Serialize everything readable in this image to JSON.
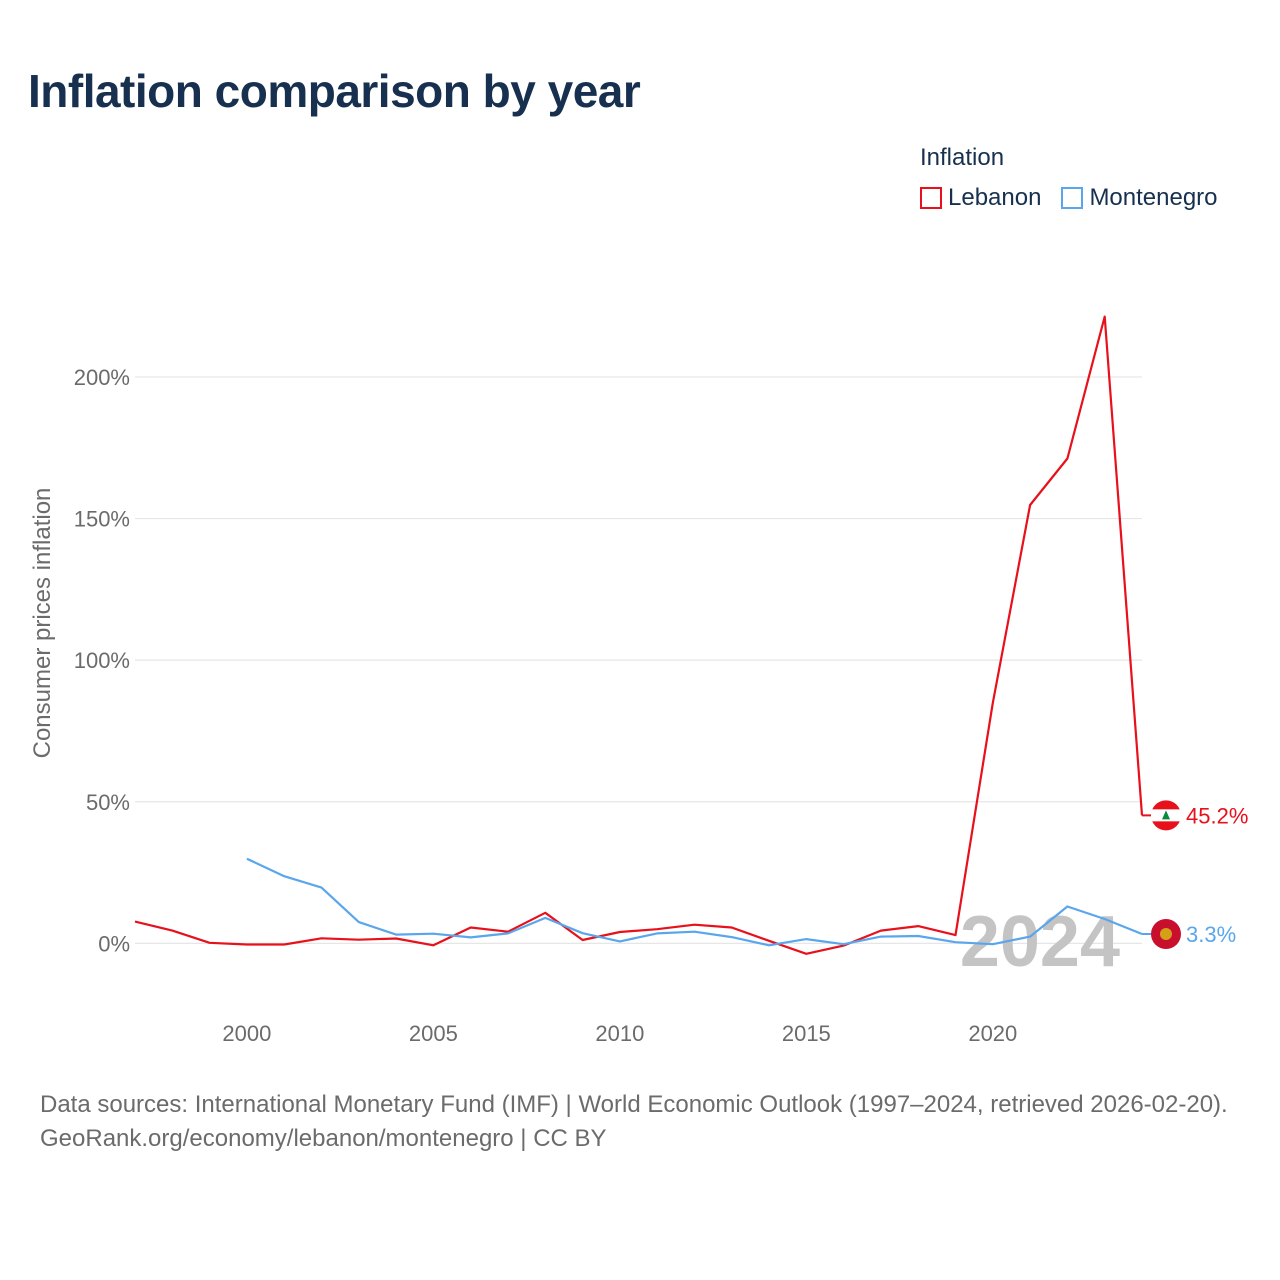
{
  "title": "Inflation comparison by year",
  "legend": {
    "title": "Inflation",
    "items": [
      {
        "label": "Lebanon",
        "color": "#e8101b"
      },
      {
        "label": "Montenegro",
        "color": "#5aa6ec"
      }
    ]
  },
  "current_year_label": "2024",
  "end_labels": {
    "lebanon": "45.2%",
    "montenegro": "3.3%"
  },
  "footer": {
    "sources": "Data sources: International Monetary Fund (IMF) | World Economic Outlook (1997–2024, retrieved 2026-02-20).",
    "url": "GeoRank.org/economy/lebanon/montenegro | CC BY"
  },
  "chart_data": {
    "type": "line",
    "title": "Inflation comparison by year",
    "xlabel": "",
    "ylabel": "Consumer prices inflation",
    "xlim": [
      1997,
      2024
    ],
    "ylim": [
      -20,
      230
    ],
    "x_ticks": [
      2000,
      2005,
      2010,
      2015,
      2020
    ],
    "y_ticks": [
      0,
      50,
      100,
      150,
      200
    ],
    "y_tick_labels": [
      "0%",
      "50%",
      "100%",
      "150%",
      "200%"
    ],
    "grid": true,
    "legend_position": "top-right",
    "series": [
      {
        "name": "Lebanon",
        "color": "#e8101b",
        "x": [
          1997,
          1998,
          1999,
          2000,
          2001,
          2002,
          2003,
          2004,
          2005,
          2006,
          2007,
          2008,
          2009,
          2010,
          2011,
          2012,
          2013,
          2014,
          2015,
          2016,
          2017,
          2018,
          2019,
          2020,
          2021,
          2022,
          2023,
          2024
        ],
        "values": [
          7.7,
          4.5,
          0.2,
          -0.4,
          -0.4,
          1.8,
          1.3,
          1.7,
          -0.7,
          5.6,
          4.1,
          10.8,
          1.2,
          4.0,
          5.0,
          6.6,
          5.6,
          0.9,
          -3.7,
          -0.8,
          4.5,
          6.1,
          2.9,
          84.9,
          154.8,
          171.2,
          221.3,
          45.2
        ]
      },
      {
        "name": "Montenegro",
        "color": "#5aa6ec",
        "x": [
          2000,
          2001,
          2002,
          2003,
          2004,
          2005,
          2006,
          2007,
          2008,
          2009,
          2010,
          2011,
          2012,
          2013,
          2014,
          2015,
          2016,
          2017,
          2018,
          2019,
          2020,
          2021,
          2022,
          2023,
          2024
        ],
        "values": [
          29.9,
          23.7,
          19.7,
          7.5,
          3.1,
          3.4,
          2.1,
          3.5,
          9.0,
          3.6,
          0.7,
          3.5,
          4.1,
          2.2,
          -0.7,
          1.5,
          -0.3,
          2.4,
          2.6,
          0.4,
          -0.3,
          2.4,
          13.0,
          8.6,
          3.3
        ]
      }
    ]
  }
}
